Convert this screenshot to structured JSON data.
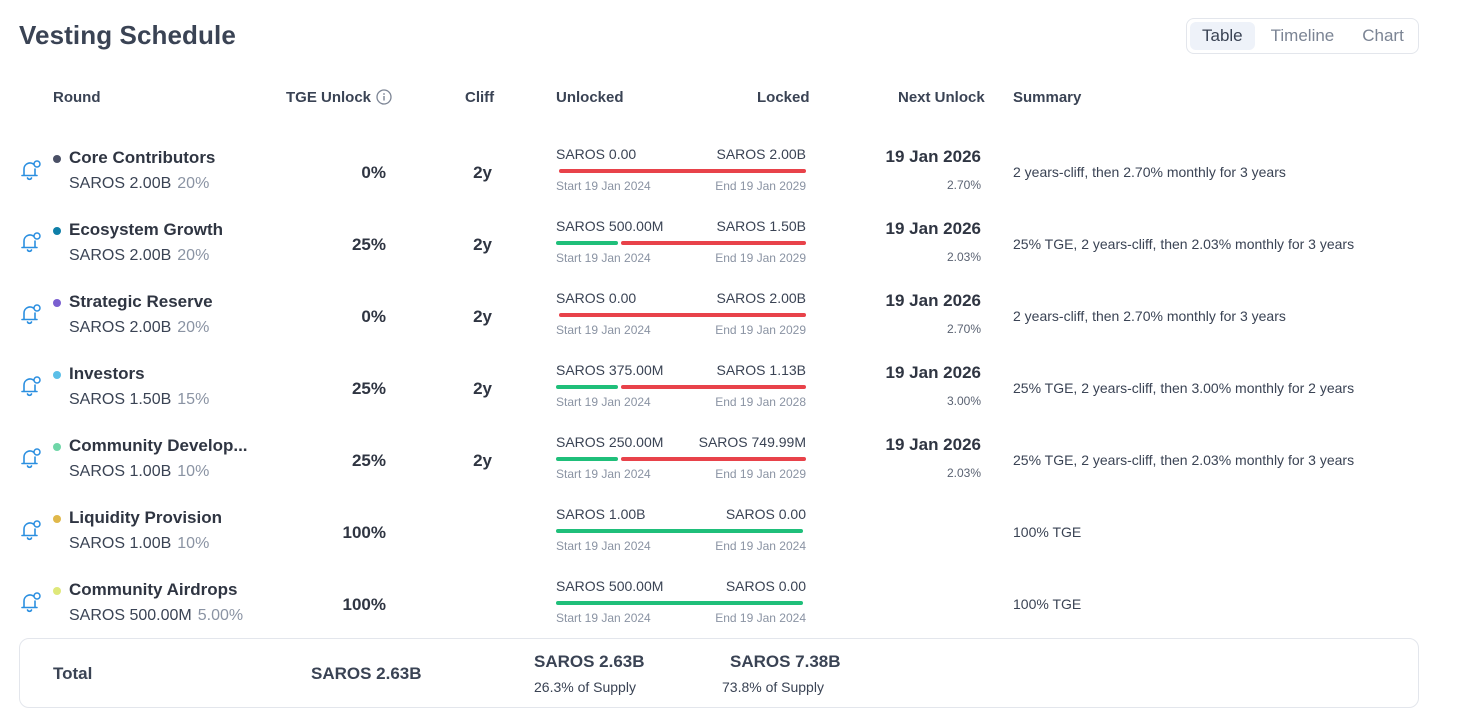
{
  "title": "Vesting Schedule",
  "view_toggle": {
    "options": [
      "Table",
      "Timeline",
      "Chart"
    ],
    "active": "Table"
  },
  "headers": {
    "round": "Round",
    "tge_unlock": "TGE Unlock",
    "cliff": "Cliff",
    "unlocked": "Unlocked",
    "locked": "Locked",
    "next_unlock": "Next Unlock",
    "summary": "Summary"
  },
  "colors": {
    "unlocked_bar": "#1fbf7a",
    "locked_bar": "#e8424a",
    "bell_icon": "#2b8fe0"
  },
  "rows": [
    {
      "name": "Core Contributors",
      "dot_color": "#4a5066",
      "amount": "SAROS 2.00B",
      "share": "20%",
      "tge": "0%",
      "cliff": "2y",
      "unlocked": "SAROS 0.00",
      "locked": "SAROS 2.00B",
      "unlocked_fraction": 0,
      "start": "Start 19 Jan 2024",
      "end": "End 19 Jan 2029",
      "next_date": "19 Jan 2026",
      "next_pct": "2.70%",
      "summary": "2 years-cliff, then 2.70% monthly for 3 years"
    },
    {
      "name": "Ecosystem Growth",
      "dot_color": "#0e7fa8",
      "amount": "SAROS 2.00B",
      "share": "20%",
      "tge": "25%",
      "cliff": "2y",
      "unlocked": "SAROS 500.00M",
      "locked": "SAROS 1.50B",
      "unlocked_fraction": 0.25,
      "start": "Start 19 Jan 2024",
      "end": "End 19 Jan 2029",
      "next_date": "19 Jan 2026",
      "next_pct": "2.03%",
      "summary": "25% TGE, 2 years-cliff, then 2.03% monthly for 3 years"
    },
    {
      "name": "Strategic Reserve",
      "dot_color": "#7a5fd0",
      "amount": "SAROS 2.00B",
      "share": "20%",
      "tge": "0%",
      "cliff": "2y",
      "unlocked": "SAROS 0.00",
      "locked": "SAROS 2.00B",
      "unlocked_fraction": 0,
      "start": "Start 19 Jan 2024",
      "end": "End 19 Jan 2029",
      "next_date": "19 Jan 2026",
      "next_pct": "2.70%",
      "summary": "2 years-cliff, then 2.70% monthly for 3 years"
    },
    {
      "name": "Investors",
      "dot_color": "#5bbfe8",
      "amount": "SAROS 1.50B",
      "share": "15%",
      "tge": "25%",
      "cliff": "2y",
      "unlocked": "SAROS 375.00M",
      "locked": "SAROS 1.13B",
      "unlocked_fraction": 0.25,
      "start": "Start 19 Jan 2024",
      "end": "End 19 Jan 2028",
      "next_date": "19 Jan 2026",
      "next_pct": "3.00%",
      "summary": "25% TGE, 2 years-cliff, then 3.00% monthly for 2 years"
    },
    {
      "name": "Community Develop...",
      "dot_color": "#6fd6a8",
      "amount": "SAROS 1.00B",
      "share": "10%",
      "tge": "25%",
      "cliff": "2y",
      "unlocked": "SAROS 250.00M",
      "locked": "SAROS 749.99M",
      "unlocked_fraction": 0.25,
      "start": "Start 19 Jan 2024",
      "end": "End 19 Jan 2029",
      "next_date": "19 Jan 2026",
      "next_pct": "2.03%",
      "summary": "25% TGE, 2 years-cliff, then 2.03% monthly for 3 years"
    },
    {
      "name": "Liquidity Provision",
      "dot_color": "#e0b84a",
      "amount": "SAROS 1.00B",
      "share": "10%",
      "tge": "100%",
      "cliff": "",
      "unlocked": "SAROS 1.00B",
      "locked": "SAROS 0.00",
      "unlocked_fraction": 1,
      "start": "Start 19 Jan 2024",
      "end": "End 19 Jan 2024",
      "next_date": "",
      "next_pct": "",
      "summary": "100% TGE"
    },
    {
      "name": "Community Airdrops",
      "dot_color": "#dfe87a",
      "amount": "SAROS 500.00M",
      "share": "5.00%",
      "tge": "100%",
      "cliff": "",
      "unlocked": "SAROS 500.00M",
      "locked": "SAROS 0.00",
      "unlocked_fraction": 1,
      "start": "Start 19 Jan 2024",
      "end": "End 19 Jan 2024",
      "next_date": "",
      "next_pct": "",
      "summary": "100% TGE"
    }
  ],
  "total": {
    "label": "Total",
    "tge_value": "SAROS 2.63B",
    "unlocked_value": "SAROS 2.63B",
    "unlocked_share": "26.3% of Supply",
    "locked_value": "SAROS 7.38B",
    "locked_share": "73.8% of Supply"
  }
}
